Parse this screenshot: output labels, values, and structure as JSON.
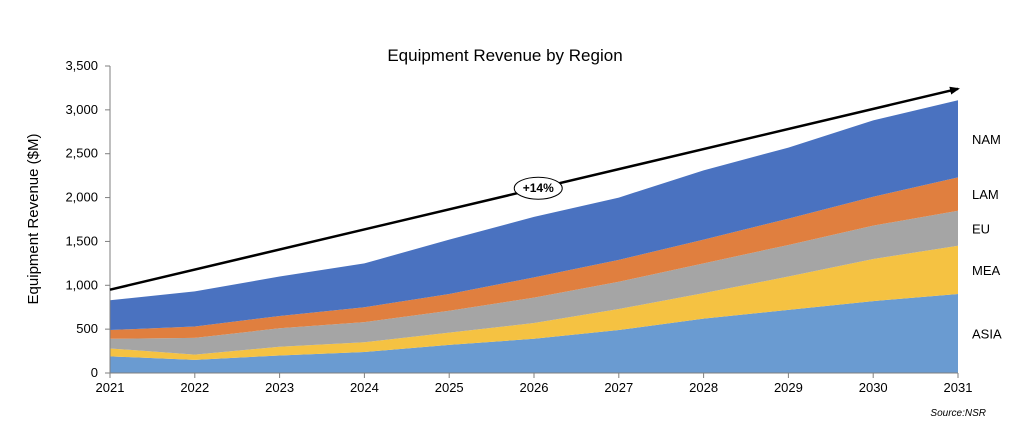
{
  "chart_data": {
    "type": "area",
    "stacked": true,
    "title": "Equipment Revenue by Region",
    "xlabel": "",
    "ylabel": "Equipment Revenue ($M)",
    "ylim": [
      0,
      3500
    ],
    "yticks": [
      0,
      500,
      1000,
      1500,
      2000,
      2500,
      3000,
      3500
    ],
    "ytick_labels": [
      "0",
      "500",
      "1,000",
      "1,500",
      "2,000",
      "2,500",
      "3,000",
      "3,500"
    ],
    "categories": [
      "2021",
      "2022",
      "2023",
      "2024",
      "2025",
      "2026",
      "2027",
      "2028",
      "2029",
      "2030",
      "2031"
    ],
    "grid": false,
    "legend": "direct labels at right",
    "series": [
      {
        "name": "ASIA",
        "color": "#6a9bd1",
        "values": [
          190,
          150,
          200,
          240,
          320,
          390,
          490,
          620,
          720,
          820,
          900
        ]
      },
      {
        "name": "MEA",
        "color": "#f5c242",
        "values": [
          90,
          60,
          100,
          110,
          140,
          180,
          240,
          290,
          380,
          480,
          550
        ]
      },
      {
        "name": "EU",
        "color": "#a5a5a5",
        "values": [
          110,
          190,
          210,
          230,
          250,
          290,
          310,
          340,
          360,
          380,
          400
        ]
      },
      {
        "name": "LAM",
        "color": "#e07f3f",
        "values": [
          100,
          130,
          140,
          170,
          190,
          230,
          250,
          270,
          300,
          330,
          380
        ]
      },
      {
        "name": "NAM",
        "color": "#4a72c0",
        "values": [
          340,
          400,
          450,
          500,
          620,
          690,
          710,
          790,
          810,
          870,
          880
        ]
      }
    ],
    "annotations": [
      {
        "type": "arrow",
        "from": {
          "x": "2021",
          "y": 950
        },
        "to": {
          "x": "2031",
          "y": 3240
        },
        "label": "+14%"
      }
    ],
    "source": "Source:NSR"
  }
}
